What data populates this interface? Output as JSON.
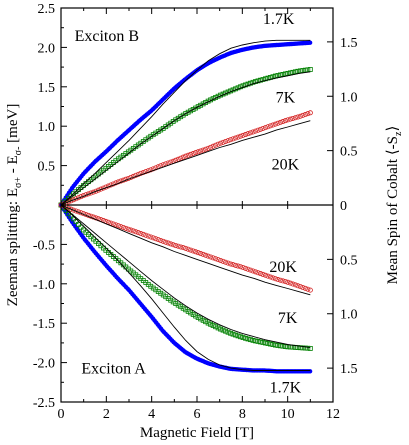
{
  "chart_data": {
    "type": "scatter",
    "title": "",
    "xlabel": "Magnetic Field [T]",
    "ylabel_left": {
      "main": "Zeeman splitting: E",
      "sub1": "σ+",
      "mid": " - E",
      "sub2": "σ-",
      "unit": "  [meV]"
    },
    "ylabel_right": "Mean Spin of Cobalt ⟨-Sₓ⟩",
    "ylabel_right_parts": {
      "main": "Mean Spin of Cobalt ⟨-S",
      "sub": "z",
      "end": "⟩"
    },
    "xlim": [
      0,
      12
    ],
    "ylim": [
      -2.5,
      2.5
    ],
    "x_ticks": [
      "0",
      "2",
      "4",
      "6",
      "8",
      "10",
      "12"
    ],
    "y_ticks_left": [
      "2.5",
      "2.0",
      "1.5",
      "1.0",
      "0.5",
      "0",
      "-0.5",
      "-1.0",
      "-1.5",
      "-2.0",
      "-2.5"
    ],
    "y_ticks_left_values": [
      2.5,
      2.0,
      1.5,
      1.0,
      0.5,
      0,
      -0.5,
      -1.0,
      -1.5,
      -2.0,
      -2.5
    ],
    "y_ticks_right": [
      "1.5",
      "1.0",
      "0.5",
      "0",
      "0.5",
      "1.0",
      "1.5"
    ],
    "y_ticks_right_values": [
      2.07,
      1.38,
      0.69,
      0,
      -0.69,
      -1.38,
      -2.07
    ],
    "panel_labels": [
      "Exciton B",
      "Exciton A"
    ],
    "series": [
      {
        "name": "1.7K",
        "branch": "B",
        "color": "#0000ff",
        "marker": "filled-circle",
        "x": [
          0,
          0.5,
          1,
          1.5,
          2,
          2.5,
          3,
          3.5,
          4,
          4.5,
          5,
          5.5,
          6,
          6.5,
          7,
          7.5,
          8,
          8.5,
          9,
          9.5,
          10,
          10.5,
          11
        ],
        "y": [
          0,
          0.22,
          0.4,
          0.55,
          0.68,
          0.82,
          0.95,
          1.08,
          1.2,
          1.34,
          1.48,
          1.6,
          1.71,
          1.8,
          1.87,
          1.93,
          1.97,
          2.0,
          2.02,
          2.03,
          2.04,
          2.05,
          2.06
        ]
      },
      {
        "name": "7K",
        "branch": "B",
        "color": "#008000",
        "marker": "open-square",
        "x": [
          0,
          0.5,
          1,
          1.5,
          2,
          2.5,
          3,
          3.5,
          4,
          4.5,
          5,
          5.5,
          6,
          6.5,
          7,
          7.5,
          8,
          8.5,
          9,
          9.5,
          10,
          10.5,
          11
        ],
        "y": [
          0,
          0.13,
          0.25,
          0.36,
          0.47,
          0.58,
          0.68,
          0.78,
          0.88,
          0.97,
          1.07,
          1.16,
          1.24,
          1.32,
          1.39,
          1.45,
          1.51,
          1.56,
          1.6,
          1.64,
          1.67,
          1.7,
          1.72
        ]
      },
      {
        "name": "20K",
        "branch": "B",
        "color": "#d42020",
        "marker": "open-circle",
        "x": [
          0,
          0.5,
          1,
          1.5,
          2,
          2.5,
          3,
          3.5,
          4,
          4.5,
          5,
          5.5,
          6,
          6.5,
          7,
          7.5,
          8,
          8.5,
          9,
          9.5,
          10,
          10.5,
          11
        ],
        "y": [
          0,
          0.06,
          0.12,
          0.17,
          0.23,
          0.29,
          0.34,
          0.4,
          0.45,
          0.51,
          0.56,
          0.62,
          0.67,
          0.72,
          0.78,
          0.83,
          0.88,
          0.93,
          0.98,
          1.03,
          1.08,
          1.12,
          1.17
        ]
      },
      {
        "name": "1.7K",
        "branch": "A",
        "color": "#0000ff",
        "marker": "filled-circle",
        "x": [
          0,
          0.5,
          1,
          1.5,
          2,
          2.5,
          3,
          3.5,
          4,
          4.5,
          5,
          5.5,
          6,
          6.5,
          7,
          7.5,
          8,
          8.5,
          9,
          9.5,
          10,
          10.5,
          11
        ],
        "y": [
          0,
          -0.22,
          -0.42,
          -0.6,
          -0.77,
          -0.93,
          -1.08,
          -1.25,
          -1.42,
          -1.6,
          -1.75,
          -1.87,
          -1.95,
          -2.01,
          -2.05,
          -2.08,
          -2.09,
          -2.1,
          -2.1,
          -2.11,
          -2.11,
          -2.11,
          -2.11
        ]
      },
      {
        "name": "7K",
        "branch": "A",
        "color": "#008000",
        "marker": "open-square",
        "x": [
          0,
          0.5,
          1,
          1.5,
          2,
          2.5,
          3,
          3.5,
          4,
          4.5,
          5,
          5.5,
          6,
          6.5,
          7,
          7.5,
          8,
          8.5,
          9,
          9.5,
          10,
          10.5,
          11
        ],
        "y": [
          0,
          -0.16,
          -0.32,
          -0.45,
          -0.58,
          -0.7,
          -0.82,
          -0.93,
          -1.04,
          -1.14,
          -1.24,
          -1.33,
          -1.42,
          -1.5,
          -1.57,
          -1.63,
          -1.68,
          -1.72,
          -1.75,
          -1.78,
          -1.8,
          -1.81,
          -1.82
        ]
      },
      {
        "name": "20K",
        "branch": "A",
        "color": "#d42020",
        "marker": "open-circle",
        "x": [
          0,
          0.5,
          1,
          1.5,
          2,
          2.5,
          3,
          3.5,
          4,
          4.5,
          5,
          5.5,
          6,
          6.5,
          7,
          7.5,
          8,
          8.5,
          9,
          9.5,
          10,
          10.5,
          11
        ],
        "y": [
          0,
          -0.06,
          -0.11,
          -0.16,
          -0.21,
          -0.26,
          -0.31,
          -0.36,
          -0.41,
          -0.46,
          -0.51,
          -0.55,
          -0.6,
          -0.65,
          -0.7,
          -0.75,
          -0.79,
          -0.84,
          -0.89,
          -0.94,
          -0.98,
          -1.03,
          -1.08
        ]
      }
    ],
    "fit_curves": [
      {
        "branch": "B",
        "temp": "1.7K",
        "color": "#000000",
        "x": [
          0,
          0.5,
          1,
          1.5,
          2,
          2.5,
          3,
          3.5,
          4,
          4.5,
          5,
          5.5,
          6,
          6.5,
          7,
          7.5,
          8,
          8.5,
          9,
          9.5,
          10,
          10.5,
          11
        ],
        "y": [
          0,
          0.13,
          0.27,
          0.4,
          0.54,
          0.68,
          0.82,
          0.97,
          1.12,
          1.28,
          1.43,
          1.58,
          1.71,
          1.83,
          1.92,
          1.99,
          2.03,
          2.06,
          2.08,
          2.09,
          2.09,
          2.09,
          2.09
        ]
      },
      {
        "branch": "B",
        "temp": "7K",
        "color": "#000000",
        "x": [
          0,
          0.5,
          1,
          1.5,
          2,
          2.5,
          3,
          3.5,
          4,
          4.5,
          5,
          5.5,
          6,
          6.5,
          7,
          7.5,
          8,
          8.5,
          9,
          9.5,
          10,
          10.5,
          11
        ],
        "y": [
          0,
          0.11,
          0.22,
          0.33,
          0.44,
          0.55,
          0.66,
          0.77,
          0.87,
          0.97,
          1.07,
          1.16,
          1.24,
          1.31,
          1.38,
          1.44,
          1.49,
          1.54,
          1.58,
          1.61,
          1.64,
          1.67,
          1.69
        ]
      },
      {
        "branch": "B",
        "temp": "20K",
        "color": "#000000",
        "x": [
          0,
          0.5,
          1,
          1.5,
          2,
          2.5,
          3,
          3.5,
          4,
          4.5,
          5,
          5.5,
          6,
          6.5,
          7,
          7.5,
          8,
          8.5,
          9,
          9.5,
          10,
          10.5,
          11
        ],
        "y": [
          0,
          0.06,
          0.11,
          0.17,
          0.22,
          0.27,
          0.33,
          0.38,
          0.43,
          0.48,
          0.53,
          0.58,
          0.63,
          0.68,
          0.73,
          0.77,
          0.82,
          0.86,
          0.9,
          0.95,
          0.99,
          1.03,
          1.07
        ]
      },
      {
        "branch": "A",
        "temp": "1.7K",
        "color": "#000000",
        "x": [
          0,
          0.5,
          1,
          1.5,
          2,
          2.5,
          3,
          3.5,
          4,
          4.5,
          5,
          5.5,
          6,
          6.5,
          7,
          7.5,
          8,
          8.5,
          9,
          9.5,
          10,
          10.5,
          11
        ],
        "y": [
          0,
          -0.13,
          -0.27,
          -0.41,
          -0.55,
          -0.7,
          -0.86,
          -1.02,
          -1.19,
          -1.37,
          -1.55,
          -1.72,
          -1.86,
          -1.96,
          -2.03,
          -2.07,
          -2.09,
          -2.1,
          -2.1,
          -2.1,
          -2.1,
          -2.1,
          -2.1
        ]
      },
      {
        "branch": "A",
        "temp": "7K",
        "color": "#000000",
        "x": [
          0,
          0.5,
          1,
          1.5,
          2,
          2.5,
          3,
          3.5,
          4,
          4.5,
          5,
          5.5,
          6,
          6.5,
          7,
          7.5,
          8,
          8.5,
          9,
          9.5,
          10,
          10.5,
          11
        ],
        "y": [
          0,
          -0.12,
          -0.24,
          -0.36,
          -0.48,
          -0.6,
          -0.72,
          -0.84,
          -0.96,
          -1.07,
          -1.18,
          -1.28,
          -1.37,
          -1.45,
          -1.52,
          -1.58,
          -1.63,
          -1.67,
          -1.71,
          -1.74,
          -1.77,
          -1.79,
          -1.81
        ]
      },
      {
        "branch": "A",
        "temp": "20K",
        "color": "#000000",
        "x": [
          0,
          0.5,
          1,
          1.5,
          2,
          2.5,
          3,
          3.5,
          4,
          4.5,
          5,
          5.5,
          6,
          6.5,
          7,
          7.5,
          8,
          8.5,
          9,
          9.5,
          10,
          10.5,
          11
        ],
        "y": [
          0,
          -0.06,
          -0.12,
          -0.18,
          -0.24,
          -0.3,
          -0.36,
          -0.42,
          -0.48,
          -0.53,
          -0.59,
          -0.64,
          -0.69,
          -0.74,
          -0.79,
          -0.84,
          -0.89,
          -0.93,
          -0.98,
          -1.02,
          -1.06,
          -1.1,
          -1.14
        ]
      }
    ],
    "annotations": [
      {
        "text": "1.7K",
        "x": 9.6,
        "y": 2.3
      },
      {
        "text": "7K",
        "x": 9.9,
        "y": 1.3
      },
      {
        "text": "20K",
        "x": 9.9,
        "y": 0.45
      },
      {
        "text": "20K",
        "x": 9.8,
        "y": -0.85
      },
      {
        "text": "7K",
        "x": 10.0,
        "y": -1.5
      },
      {
        "text": "1.7K",
        "x": 9.9,
        "y": -2.38
      }
    ],
    "grid": false,
    "legend": "none"
  }
}
